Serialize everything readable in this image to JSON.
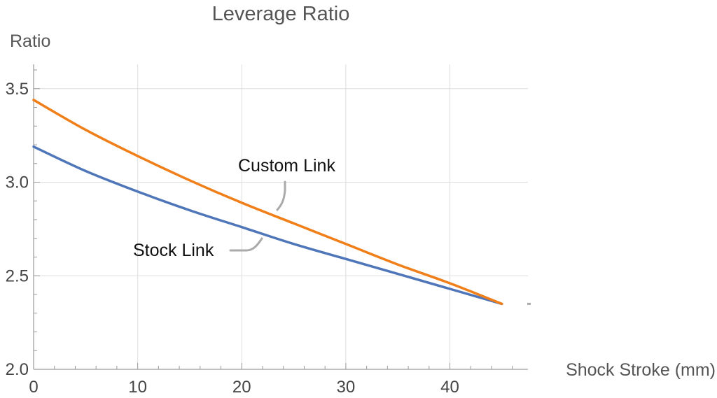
{
  "chart_data": {
    "type": "line",
    "title": "Leverage Ratio",
    "xlabel": "Shock Stroke (mm)",
    "ylabel": "Ratio",
    "xlim": [
      0,
      47.5
    ],
    "ylim": [
      2.0,
      3.63
    ],
    "x_ticks": [
      0,
      10,
      20,
      30,
      40
    ],
    "y_ticks": [
      2.0,
      2.5,
      3.0,
      3.5
    ],
    "y_tick_labels": [
      "2.0",
      "2.5",
      "3.0",
      "3.5"
    ],
    "grid": true,
    "legend": "inline-callouts",
    "series": [
      {
        "name": "Custom Link",
        "color": "#f07f1a",
        "x": [
          0,
          5,
          10,
          15,
          20,
          25,
          30,
          35,
          40,
          45
        ],
        "y": [
          3.44,
          3.28,
          3.14,
          3.01,
          2.89,
          2.78,
          2.67,
          2.56,
          2.46,
          2.35
        ]
      },
      {
        "name": "Stock Link",
        "color": "#4f76b8",
        "x": [
          0,
          5,
          10,
          15,
          20,
          25,
          30,
          35,
          40,
          45
        ],
        "y": [
          3.19,
          3.06,
          2.95,
          2.85,
          2.76,
          2.67,
          2.59,
          2.51,
          2.43,
          2.35
        ]
      }
    ]
  }
}
